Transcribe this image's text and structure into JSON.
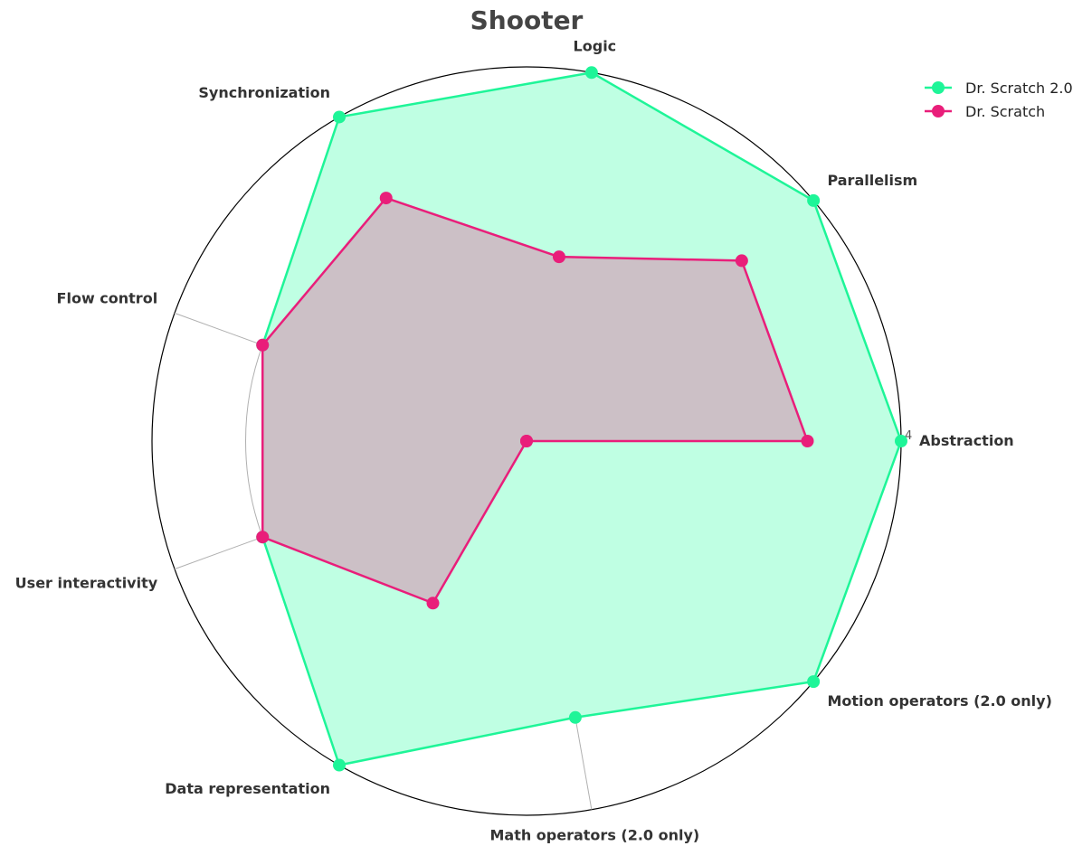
{
  "chart_data": {
    "type": "radar",
    "title": "Shooter",
    "axes": [
      "Abstraction",
      "Parallelism",
      "Logic",
      "Synchronization",
      "Flow control",
      "User interactivity",
      "Data representation",
      "Math operators (2.0 only)",
      "Motion operators (2.0 only)"
    ],
    "rmax": 4,
    "rticks": [
      0,
      1,
      2,
      3,
      4
    ],
    "grid": true,
    "legend_position": "top-right",
    "series": [
      {
        "name": "Dr. Scratch 2.0",
        "values": [
          4,
          4,
          4,
          4,
          3,
          3,
          4,
          3,
          4
        ],
        "color": "#1ef598",
        "fill": "#bfffe3"
      },
      {
        "name": "Dr. Scratch",
        "values": [
          3,
          3,
          2,
          3,
          3,
          3,
          2,
          0,
          0
        ],
        "color": "#e91e7a",
        "fill": "#cdb9c2"
      }
    ]
  }
}
